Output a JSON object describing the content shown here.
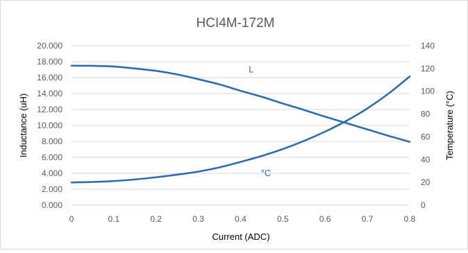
{
  "chart_data": {
    "type": "line",
    "title": "HCI4M-172M",
    "xlabel": "Current (ADC)",
    "ylabel_left": "Inductance (uH)",
    "ylabel_right": "Temperature (°C)",
    "x_ticks": [
      "0",
      "0.1",
      "0.2",
      "0.3",
      "0.4",
      "0.5",
      "0.6",
      "0.7",
      "0.8"
    ],
    "y_left_ticks": [
      "0.000",
      "2.000",
      "4.000",
      "6.000",
      "8.000",
      "10.000",
      "12.000",
      "14.000",
      "16.000",
      "18.000",
      "20.000"
    ],
    "y_right_ticks": [
      "0",
      "20",
      "40",
      "60",
      "80",
      "100",
      "120",
      "140"
    ],
    "xlim": [
      0,
      0.8
    ],
    "ylim_left": [
      0,
      20
    ],
    "ylim_right": [
      0,
      140
    ],
    "grid": "horizontal",
    "line_color": "#2e6cb0",
    "series": [
      {
        "name": "L",
        "axis": "left",
        "x": [
          0,
          0.05,
          0.1,
          0.15,
          0.2,
          0.25,
          0.3,
          0.35,
          0.4,
          0.45,
          0.5,
          0.55,
          0.6,
          0.65,
          0.7,
          0.75,
          0.8
        ],
        "y": [
          17.5,
          17.48,
          17.4,
          17.15,
          16.85,
          16.4,
          15.8,
          15.15,
          14.35,
          13.6,
          12.75,
          11.95,
          11.1,
          10.3,
          9.5,
          8.7,
          7.95
        ]
      },
      {
        "name": "°C",
        "axis": "right",
        "x": [
          0,
          0.05,
          0.1,
          0.15,
          0.2,
          0.25,
          0.3,
          0.35,
          0.4,
          0.45,
          0.5,
          0.55,
          0.6,
          0.65,
          0.7,
          0.75,
          0.8
        ],
        "y": [
          20,
          20.4,
          21.2,
          22.6,
          24.5,
          26.8,
          29.5,
          33.2,
          38,
          43.2,
          49.3,
          56.4,
          64.6,
          74,
          85,
          98,
          113
        ]
      }
    ],
    "annotations": [
      {
        "text": "L",
        "x": 0.425,
        "y_left": 17.1
      },
      {
        "text": "°C",
        "x": 0.46,
        "y_right": 28.5
      }
    ]
  }
}
